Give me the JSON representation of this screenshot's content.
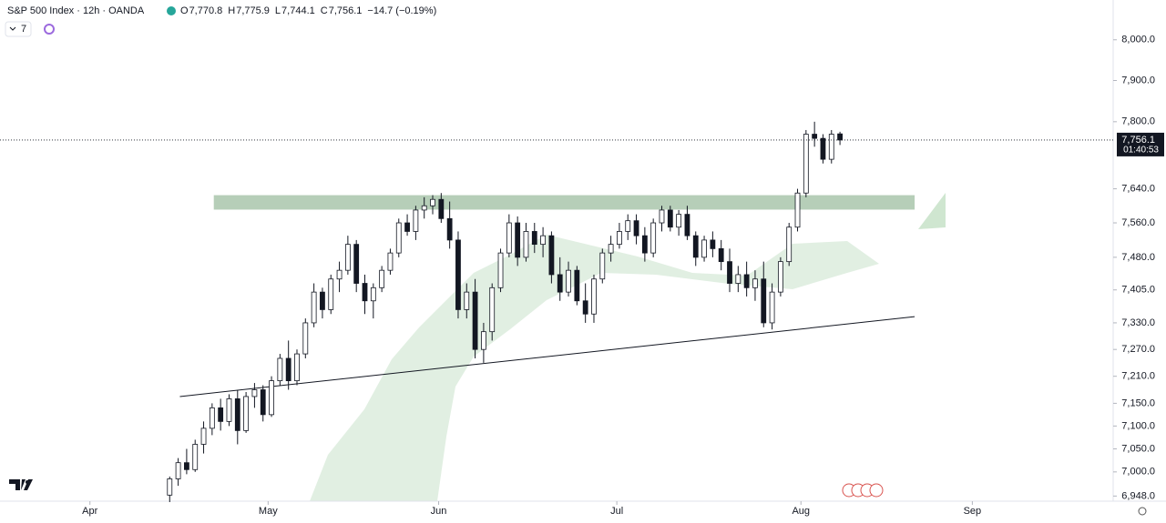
{
  "chart_data": {
    "type": "candlestick",
    "title": "S&P 500 Index · 12h · OANDA",
    "ohlc_legend": [
      {
        "key": "O",
        "value": "7,770.8"
      },
      {
        "key": "H",
        "value": "7,775.9"
      },
      {
        "key": "L",
        "value": "7,744.1"
      },
      {
        "key": "C",
        "value": "7,756.1"
      }
    ],
    "change": "−14.7 (−0.19%)",
    "indicator_count": "7",
    "log": true,
    "ylim": [
      6937,
      8099
    ],
    "yticks": [
      {
        "value": 6948,
        "label": "6,948.0"
      },
      {
        "value": 7000,
        "label": "7,000.0"
      },
      {
        "value": 7050,
        "label": "7,050.0"
      },
      {
        "value": 7100,
        "label": "7,100.0"
      },
      {
        "value": 7150,
        "label": "7,150.0"
      },
      {
        "value": 7210,
        "label": "7,210.0"
      },
      {
        "value": 7270,
        "label": "7,270.0"
      },
      {
        "value": 7330,
        "label": "7,330.0"
      },
      {
        "value": 7405,
        "label": "7,405.0"
      },
      {
        "value": 7480,
        "label": "7,480.0"
      },
      {
        "value": 7560,
        "label": "7,560.0"
      },
      {
        "value": 7640,
        "label": "7,640.0"
      },
      {
        "value": 7800,
        "label": "7,800.0"
      },
      {
        "value": 7900,
        "label": "7,900.0"
      },
      {
        "value": 8000,
        "label": "8,000.0"
      }
    ],
    "xlim": [
      -20,
      111.2
    ],
    "xticks": [
      {
        "value": -9.4,
        "label": "Apr"
      },
      {
        "value": 11.6,
        "label": "May"
      },
      {
        "value": 31.7,
        "label": "Jun"
      },
      {
        "value": 52.7,
        "label": "Jul"
      },
      {
        "value": 74.4,
        "label": "Aug"
      },
      {
        "value": 94.6,
        "label": "Sep"
      }
    ],
    "up_color": "#ffffff",
    "down_color": "#131722",
    "open": [
      6950,
      6985,
      7020,
      7005,
      7060,
      7095,
      7140,
      7110,
      7160,
      7090,
      7165,
      7180,
      7125,
      7200,
      7250,
      7200,
      7260,
      7330,
      7400,
      7360,
      7430,
      7450,
      7510,
      7420,
      7380,
      7410,
      7450,
      7490,
      7560,
      7540,
      7590,
      7600,
      7615,
      7570,
      7520,
      7360,
      7400,
      7270,
      7310,
      7410,
      7490,
      7560,
      7480,
      7540,
      7510,
      7530,
      7440,
      7400,
      7450,
      7380,
      7350,
      7430,
      7490,
      7510,
      7540,
      7565,
      7530,
      7490,
      7560,
      7590,
      7550,
      7580,
      7530,
      7480,
      7520,
      7500,
      7470,
      7420,
      7440,
      7410,
      7430,
      7330,
      7400,
      7470,
      7550,
      7630,
      7770,
      7760,
      7710,
      7770.8
    ],
    "high": [
      6990,
      7030,
      7050,
      7070,
      7110,
      7150,
      7160,
      7170,
      7180,
      7175,
      7195,
      7190,
      7210,
      7260,
      7290,
      7270,
      7340,
      7420,
      7410,
      7440,
      7470,
      7530,
      7520,
      7440,
      7420,
      7460,
      7500,
      7570,
      7580,
      7600,
      7620,
      7625,
      7630,
      7610,
      7540,
      7420,
      7430,
      7330,
      7420,
      7500,
      7580,
      7575,
      7560,
      7560,
      7550,
      7540,
      7480,
      7470,
      7460,
      7420,
      7440,
      7500,
      7530,
      7560,
      7580,
      7580,
      7550,
      7570,
      7600,
      7600,
      7590,
      7600,
      7540,
      7530,
      7540,
      7520,
      7500,
      7460,
      7470,
      7450,
      7470,
      7420,
      7480,
      7560,
      7640,
      7780,
      7800,
      7770,
      7780,
      7775.9
    ],
    "low": [
      6935,
      6970,
      6995,
      7000,
      7040,
      7080,
      7090,
      7100,
      7060,
      7085,
      7140,
      7110,
      7120,
      7190,
      7180,
      7190,
      7250,
      7320,
      7340,
      7350,
      7400,
      7440,
      7400,
      7350,
      7340,
      7400,
      7440,
      7480,
      7530,
      7520,
      7570,
      7580,
      7560,
      7500,
      7340,
      7340,
      7250,
      7240,
      7290,
      7400,
      7480,
      7460,
      7470,
      7490,
      7480,
      7420,
      7380,
      7390,
      7370,
      7330,
      7330,
      7420,
      7470,
      7500,
      7520,
      7510,
      7470,
      7480,
      7540,
      7540,
      7530,
      7520,
      7460,
      7470,
      7480,
      7450,
      7400,
      7400,
      7390,
      7380,
      7320,
      7315,
      7390,
      7460,
      7540,
      7620,
      7740,
      7700,
      7700,
      7744.1
    ],
    "close": [
      6985,
      7020,
      7005,
      7060,
      7095,
      7140,
      7110,
      7160,
      7090,
      7165,
      7180,
      7125,
      7200,
      7250,
      7200,
      7260,
      7330,
      7400,
      7360,
      7430,
      7450,
      7510,
      7420,
      7380,
      7410,
      7450,
      7490,
      7560,
      7540,
      7590,
      7600,
      7615,
      7570,
      7520,
      7360,
      7400,
      7270,
      7310,
      7410,
      7490,
      7560,
      7480,
      7540,
      7510,
      7530,
      7440,
      7400,
      7450,
      7380,
      7350,
      7430,
      7490,
      7510,
      7540,
      7565,
      7530,
      7490,
      7560,
      7590,
      7550,
      7580,
      7530,
      7480,
      7520,
      7500,
      7470,
      7420,
      7440,
      7410,
      7430,
      7330,
      7400,
      7470,
      7550,
      7630,
      7770,
      7760,
      7710,
      7770,
      7756.1
    ],
    "last_price": {
      "value": 7756.1,
      "label": "7,756.1"
    },
    "countdown": "01:40:53",
    "zone": {
      "low": 7591,
      "high": 7625,
      "x": [
        5.2,
        87.8
      ],
      "color": "#a9c6ab"
    },
    "trendline": {
      "x": [
        1.2,
        87.8
      ],
      "y": [
        7165,
        7344
      ]
    }
  }
}
